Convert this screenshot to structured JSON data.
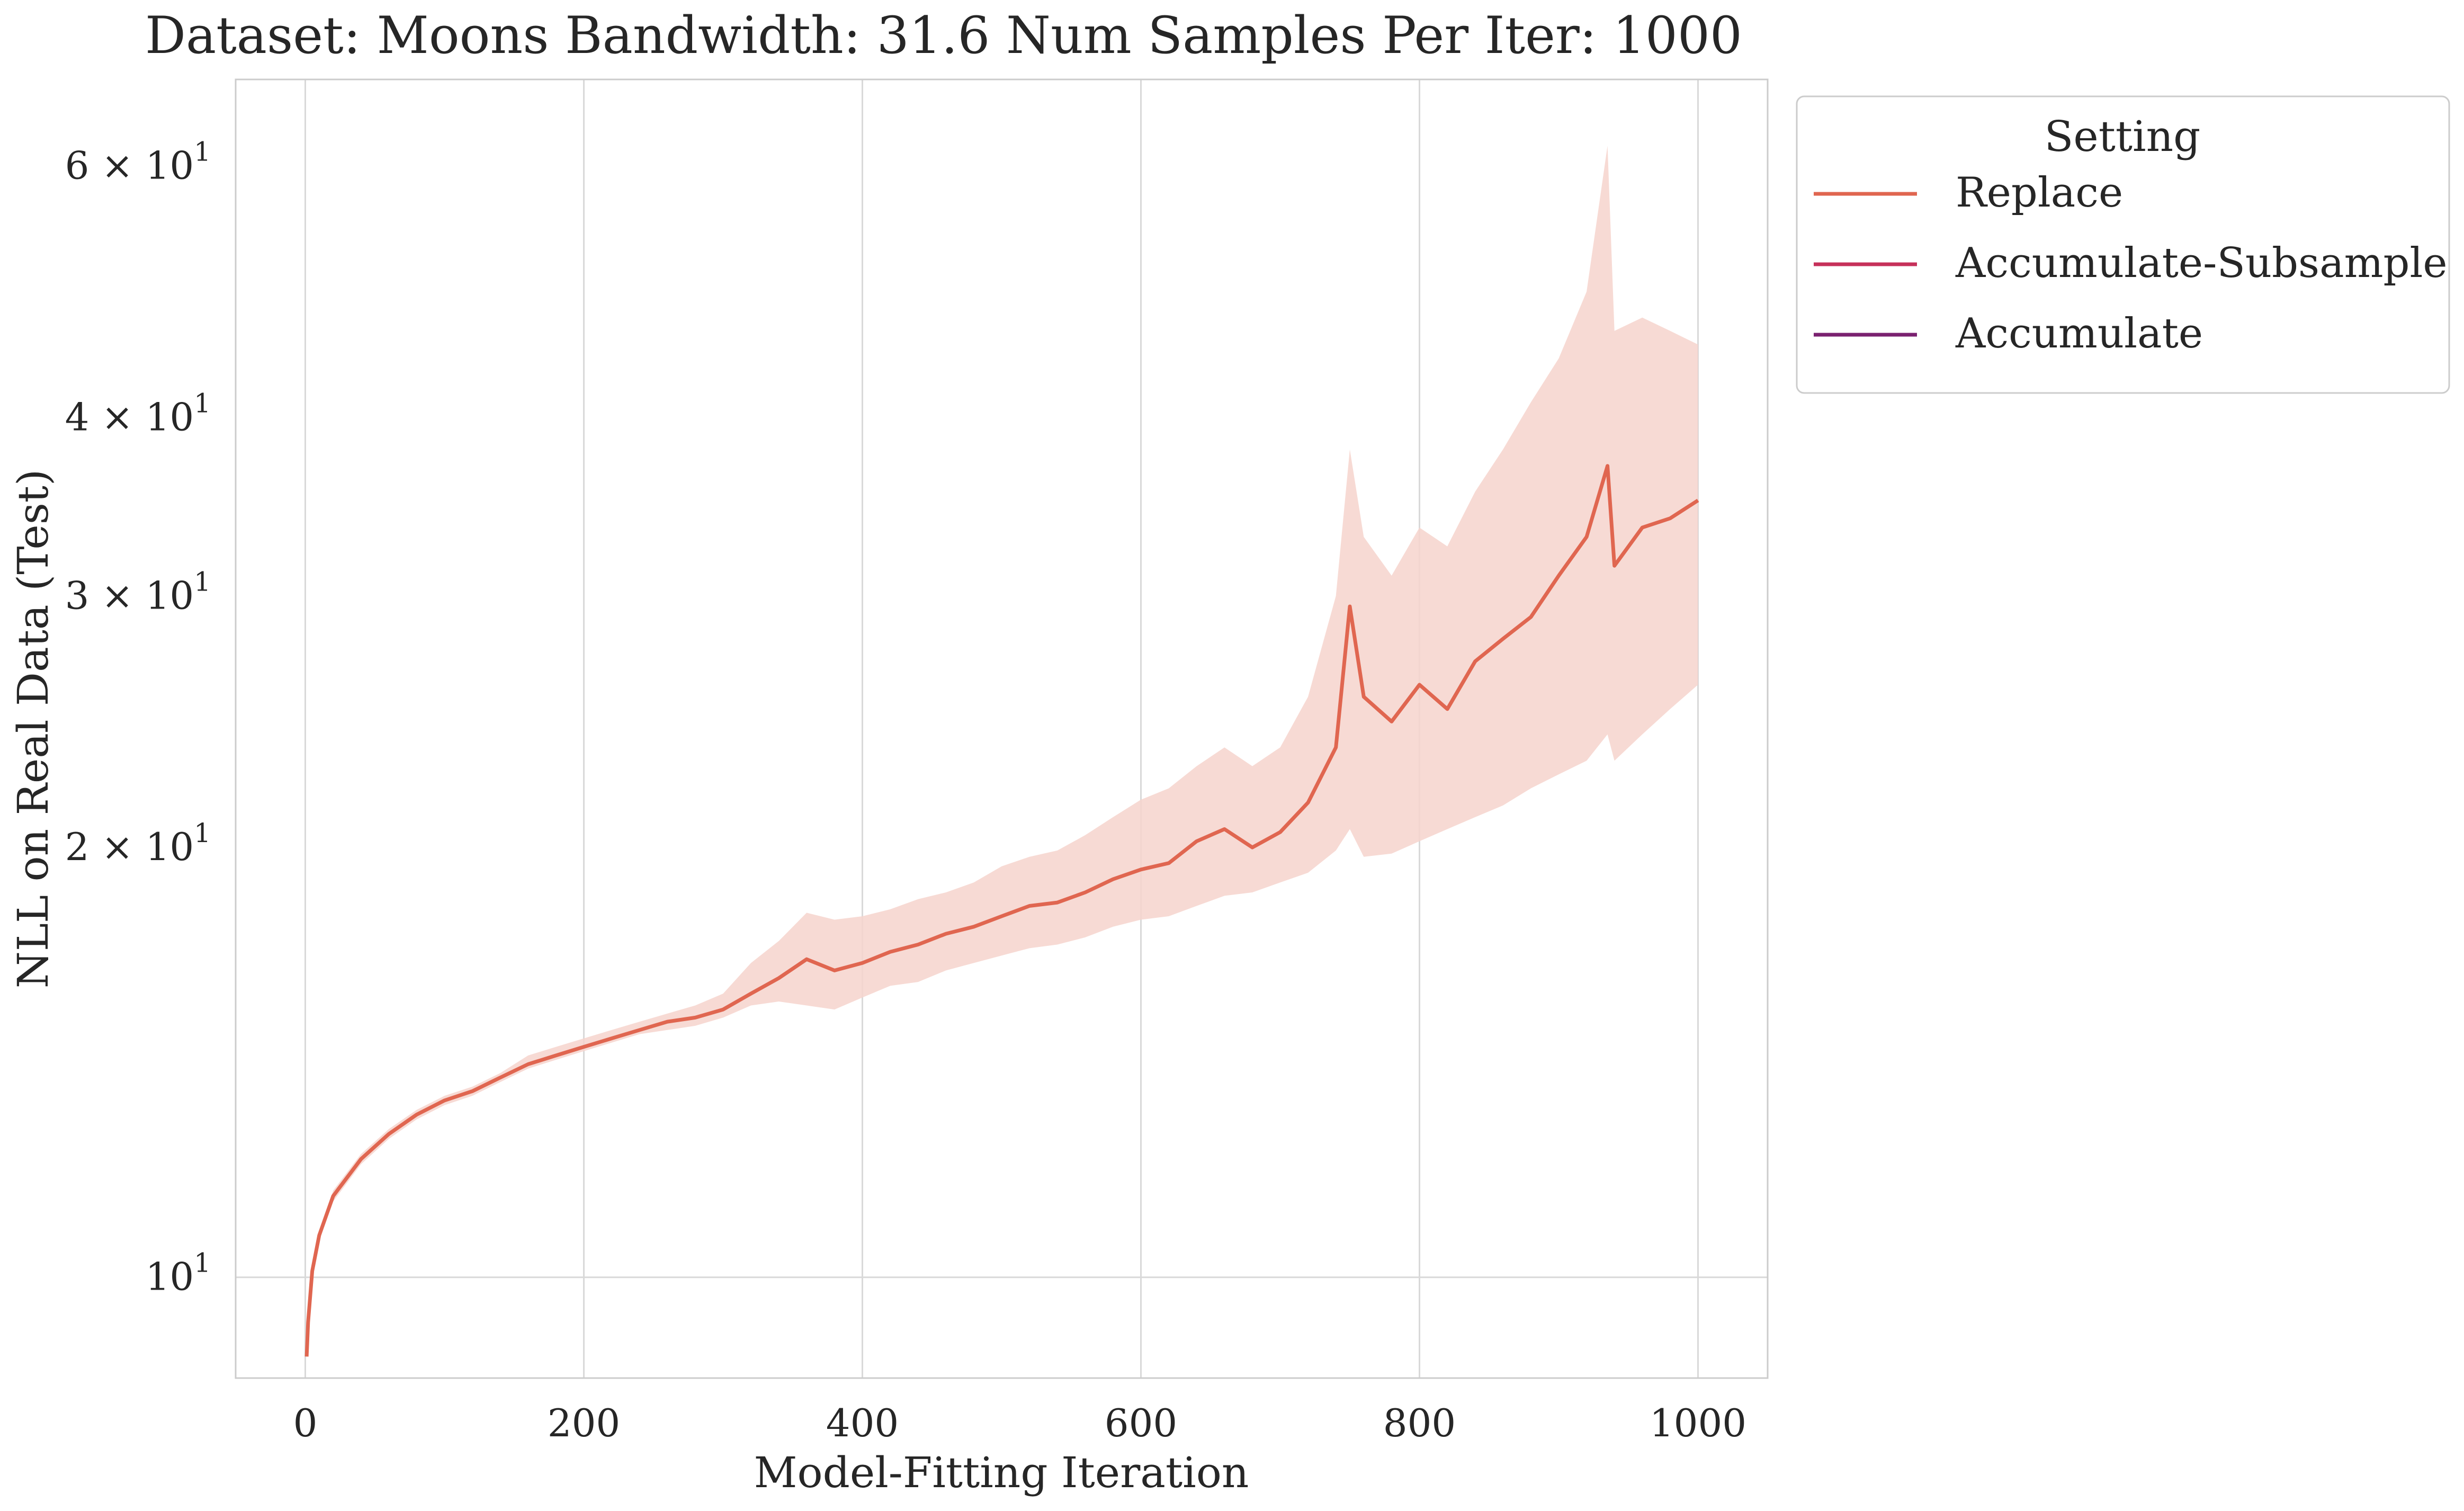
{
  "chart_data": {
    "type": "line",
    "title": "Dataset: Moons Bandwidth: 31.6 Num Samples Per Iter: 1000",
    "xlabel": "Model-Fitting Iteration",
    "ylabel": "NLL on Real Data (Test)",
    "xlim": [
      -50,
      1050
    ],
    "ylim": [
      8.5,
      69
    ],
    "yscale": "log",
    "x_ticks": [
      0,
      200,
      400,
      600,
      800,
      1000
    ],
    "x_tick_labels": [
      "0",
      "200",
      "400",
      "600",
      "800",
      "1000"
    ],
    "y_ticks": [
      {
        "value": 10,
        "base": "10",
        "exp": "1"
      },
      {
        "value": 20,
        "base": "2 × 10",
        "exp": "1"
      },
      {
        "value": 30,
        "base": "3 × 10",
        "exp": "1"
      },
      {
        "value": 40,
        "base": "4 × 10",
        "exp": "1"
      },
      {
        "value": 60,
        "base": "6 × 10",
        "exp": "1"
      }
    ],
    "grid": true,
    "legend": {
      "title": "Setting",
      "placement": "outside-upper-right",
      "entries": [
        {
          "label": "Replace",
          "color": "#e06650"
        },
        {
          "label": "Accumulate-Subsample",
          "color": "#c6305a"
        },
        {
          "label": "Accumulate",
          "color": "#7a2170"
        }
      ]
    },
    "series": [
      {
        "name": "Replace",
        "color": "#e06650",
        "band_color": "#f6d3cc",
        "x": [
          1,
          2,
          5,
          10,
          20,
          40,
          60,
          80,
          100,
          120,
          140,
          160,
          180,
          200,
          220,
          240,
          260,
          280,
          300,
          320,
          340,
          360,
          380,
          400,
          420,
          440,
          460,
          480,
          500,
          520,
          540,
          560,
          580,
          600,
          620,
          640,
          660,
          680,
          700,
          720,
          740,
          750,
          760,
          780,
          800,
          820,
          840,
          860,
          880,
          900,
          920,
          935,
          940,
          960,
          980,
          1000
        ],
        "y": [
          8.8,
          9.3,
          10.1,
          10.7,
          11.4,
          12.1,
          12.6,
          13.0,
          13.3,
          13.5,
          13.8,
          14.1,
          14.3,
          14.5,
          14.7,
          14.9,
          15.1,
          15.2,
          15.4,
          15.8,
          16.2,
          16.7,
          16.4,
          16.6,
          16.9,
          17.1,
          17.4,
          17.6,
          17.9,
          18.2,
          18.3,
          18.6,
          19.0,
          19.3,
          19.5,
          20.2,
          20.6,
          20.0,
          20.5,
          21.5,
          23.5,
          29.5,
          25.5,
          24.5,
          26.0,
          25.0,
          27.0,
          28.0,
          29.0,
          31.0,
          33.0,
          37.0,
          31.5,
          33.5,
          34.0,
          35.0
        ],
        "lower": [
          8.8,
          9.3,
          10.1,
          10.7,
          11.3,
          12.0,
          12.5,
          12.9,
          13.2,
          13.4,
          13.7,
          14.0,
          14.2,
          14.4,
          14.6,
          14.8,
          14.9,
          15.0,
          15.2,
          15.5,
          15.6,
          15.5,
          15.4,
          15.7,
          16.0,
          16.1,
          16.4,
          16.6,
          16.8,
          17.0,
          17.1,
          17.3,
          17.6,
          17.8,
          17.9,
          18.2,
          18.5,
          18.6,
          18.9,
          19.2,
          19.9,
          20.6,
          19.7,
          19.8,
          20.2,
          20.6,
          21.0,
          21.4,
          22.0,
          22.5,
          23.0,
          24.0,
          23.0,
          24.0,
          25.0,
          26.0
        ],
        "upper": [
          8.8,
          9.3,
          10.1,
          10.7,
          11.5,
          12.2,
          12.7,
          13.1,
          13.4,
          13.6,
          13.9,
          14.3,
          14.5,
          14.7,
          14.9,
          15.1,
          15.3,
          15.5,
          15.8,
          16.6,
          17.2,
          18.0,
          17.8,
          17.9,
          18.1,
          18.4,
          18.6,
          18.9,
          19.4,
          19.7,
          19.9,
          20.4,
          21.0,
          21.6,
          22.0,
          22.8,
          23.5,
          22.8,
          23.5,
          25.5,
          30.0,
          38.0,
          33.0,
          31.0,
          33.5,
          32.5,
          35.5,
          38.0,
          41.0,
          44.0,
          49.0,
          62.0,
          46.0,
          47.0,
          46.0,
          45.0
        ]
      }
    ]
  }
}
